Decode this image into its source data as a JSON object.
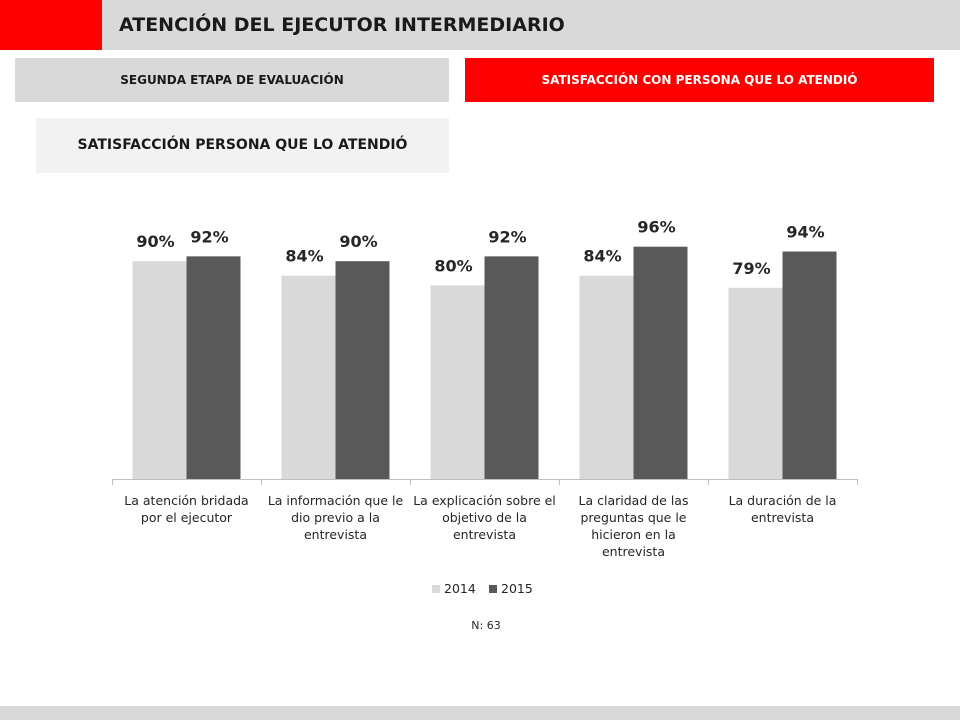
{
  "header": {
    "title": "ATENCIÓN DEL EJECUTOR INTERMEDIARIO"
  },
  "tabs": [
    {
      "label": "SEGUNDA ETAPA DE EVALUACIÓN",
      "active": false
    },
    {
      "label": "SATISFACCIÓN CON PERSONA QUE LO ATENDIÓ",
      "active": true
    }
  ],
  "section": {
    "title": "SATISFACCIÓN PERSONA QUE LO ATENDIÓ"
  },
  "colors": {
    "accent": "#ff0000",
    "series_2014": "#d9d9d9",
    "series_2015": "#595959"
  },
  "chart_data": {
    "type": "bar",
    "categories": [
      [
        "La atención bridada",
        "por el ejecutor"
      ],
      [
        "La información que le",
        "dio previo a la",
        "entrevista"
      ],
      [
        "La explicación sobre el",
        "objetivo de la",
        "entrevista"
      ],
      [
        "La claridad de las",
        "preguntas que le",
        "hicieron en la",
        "entrevista"
      ],
      [
        "La duración de la",
        "entrevista"
      ]
    ],
    "series": [
      {
        "name": "2014",
        "values": [
          90,
          84,
          80,
          84,
          79
        ],
        "labels": [
          "90%",
          "84%",
          "80%",
          "84%",
          "79%"
        ],
        "color": "#d9d9d9"
      },
      {
        "name": "2015",
        "values": [
          92,
          90,
          92,
          96,
          94
        ],
        "labels": [
          "92%",
          "90%",
          "92%",
          "96%",
          "94%"
        ],
        "color": "#595959"
      }
    ],
    "ylim": [
      0,
      100
    ],
    "legend_position": "bottom",
    "note": "N: 63",
    "grid": false
  }
}
